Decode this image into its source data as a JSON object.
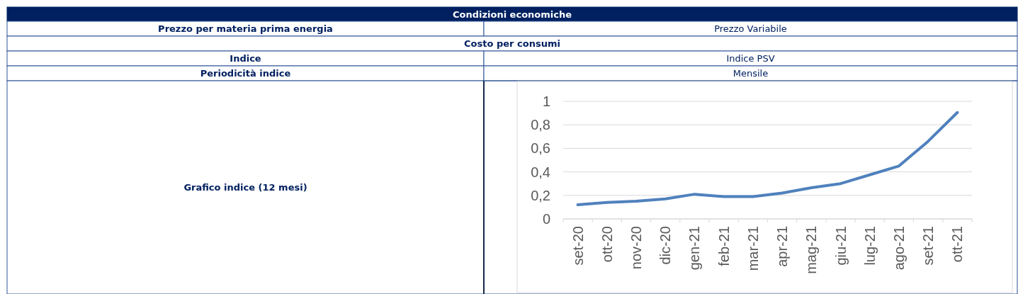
{
  "chart_data": [
    {
      "type": "other",
      "annotations": [
        "Condizioni economiche",
        "Prezzo per materia prima energia",
        "Prezzo Variabile",
        "Costo per consumi",
        "Indice",
        "Indice PSV",
        "Periodicità indice",
        "Mensile",
        "Grafico indice (12 mesi)"
      ]
    },
    {
      "type": "line",
      "categories": [
        "set-20",
        "ott-20",
        "nov-20",
        "dic-20",
        "gen-21",
        "feb-21",
        "mar-21",
        "apr-21",
        "mag-21",
        "giu-21",
        "lug-21",
        "ago-21",
        "set-21",
        "ott-21"
      ],
      "series": [
        {
          "color": "#4f81bd",
          "values": [
            0.12,
            0.14,
            0.15,
            0.17,
            0.21,
            0.19,
            0.19,
            0.22,
            0.265,
            0.3,
            0.375,
            0.45,
            0.66,
            0.905
          ]
        }
      ],
      "ylim": [
        0,
        1
      ],
      "yticks": [
        {
          "value": 0,
          "label": "0"
        },
        {
          "value": 0.2,
          "label": "0,2"
        },
        {
          "value": 0.4,
          "label": "0,4"
        },
        {
          "value": 0.6,
          "label": "0,6"
        },
        {
          "value": 0.8,
          "label": "0,8"
        },
        {
          "value": 1,
          "label": "1"
        }
      ],
      "grid": "y",
      "marker": "none",
      "line_style": "solid"
    }
  ]
}
